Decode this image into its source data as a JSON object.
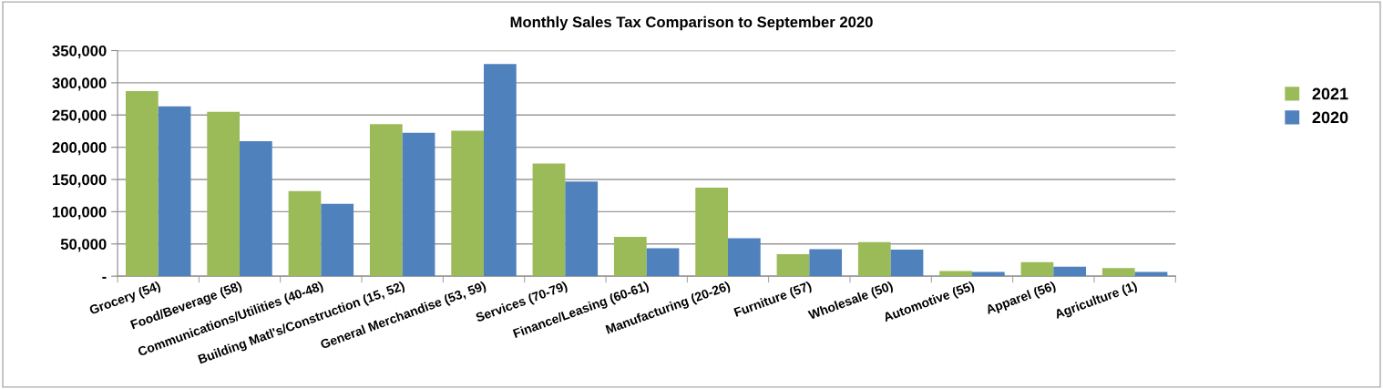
{
  "chart_data": {
    "type": "bar",
    "title": "Monthly Sales Tax Comparison to September 2020",
    "categories": [
      "Grocery (54)",
      "Food/Beverage (58)",
      "Communications/Utilities (40-48)",
      "Building Matl's/Construction (15, 52)",
      "General Merchandise (53, 59)",
      "Services (70-79)",
      "Finance/Leasing (60-61)",
      "Manufacturing (20-26)",
      "Furniture (57)",
      "Wholesale (50)",
      "Automotive (55)",
      "Apparel (56)",
      "Agriculture (1)"
    ],
    "series": [
      {
        "name": "2021",
        "color": "#9bbb59",
        "values": [
          287000,
          255000,
          132000,
          236000,
          225500,
          174700,
          60900,
          137400,
          34000,
          52900,
          8000,
          21700,
          12700
        ]
      },
      {
        "name": "2020",
        "color": "#4f81bd",
        "values": [
          263400,
          209300,
          112200,
          222500,
          329000,
          146800,
          43400,
          59000,
          42000,
          41100,
          6600,
          14600,
          6600
        ]
      }
    ],
    "ylim": [
      0,
      350000
    ],
    "yticks": [
      {
        "value": 0,
        "label": "-"
      },
      {
        "value": 50000,
        "label": "50,000"
      },
      {
        "value": 100000,
        "label": "100,000"
      },
      {
        "value": 150000,
        "label": "150,000"
      },
      {
        "value": 200000,
        "label": "200,000"
      },
      {
        "value": 250000,
        "label": "250,000"
      },
      {
        "value": 300000,
        "label": "300,000"
      },
      {
        "value": 350000,
        "label": "350,000"
      }
    ],
    "grid": "y",
    "legend": "right"
  }
}
